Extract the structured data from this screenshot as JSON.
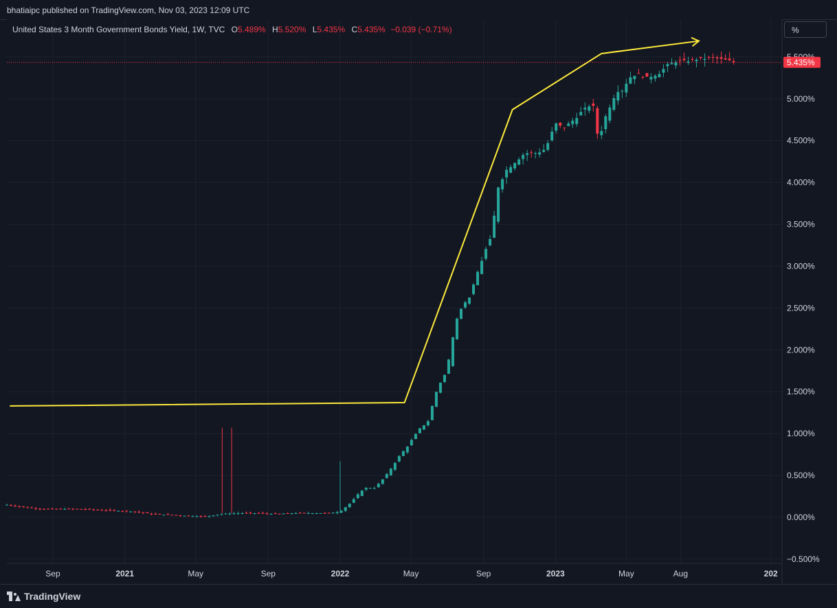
{
  "header": {
    "published": "bhatiaipc published on TradingView.com, Nov 03, 2023 12:09 UTC"
  },
  "legend": {
    "title": "United States 3 Month Government Bonds Yield, 1W, TVC",
    "o_label": "O",
    "o_value": "5.489%",
    "h_label": "H",
    "h_value": "5.520%",
    "l_label": "L",
    "l_value": "5.435%",
    "c_label": "C",
    "c_value": "5.435%",
    "change": "−0.039 (−0.71%)"
  },
  "unit_button": "%",
  "footer": {
    "brand": "TradingView"
  },
  "colors": {
    "up": "#26a69a",
    "down": "#f23645",
    "annotation": "#ffeb3b",
    "background": "#131722",
    "grid": "#1e222d"
  },
  "chart_data": {
    "type": "candlestick",
    "title": "United States 3 Month Government Bonds Yield, 1W, TVC",
    "x_range": [
      "2020-06-15",
      "2024-01-20"
    ],
    "y_range": [
      -0.55,
      5.95
    ],
    "y_unit": "%",
    "y_ticks": [
      -0.5,
      0,
      0.5,
      1,
      1.5,
      2,
      2.5,
      3,
      3.5,
      4,
      4.5,
      5,
      5.5
    ],
    "y_tick_labels": [
      "−0.500%",
      "0.000%",
      "0.500%",
      "1.000%",
      "1.500%",
      "2.000%",
      "2.500%",
      "3.000%",
      "3.500%",
      "4.000%",
      "4.500%",
      "5.000%",
      "5.500%"
    ],
    "x_ticks": [
      {
        "label": "Sep",
        "date": "2020-09-01",
        "bold": false
      },
      {
        "label": "2021",
        "date": "2021-01-01",
        "bold": true
      },
      {
        "label": "May",
        "date": "2021-05-01",
        "bold": false
      },
      {
        "label": "Sep",
        "date": "2021-09-01",
        "bold": false
      },
      {
        "label": "2022",
        "date": "2022-01-01",
        "bold": true
      },
      {
        "label": "May",
        "date": "2022-05-01",
        "bold": false
      },
      {
        "label": "Sep",
        "date": "2022-09-01",
        "bold": false
      },
      {
        "label": "2023",
        "date": "2023-01-01",
        "bold": true
      },
      {
        "label": "May",
        "date": "2023-05-01",
        "bold": false
      },
      {
        "label": "Aug",
        "date": "2023-08-01",
        "bold": false
      },
      {
        "label": "202",
        "date": "2024-01-01",
        "bold": true
      }
    ],
    "last_price": 5.435,
    "last_price_label": "5.435%",
    "series_close": [
      [
        "2020-06-15",
        0.15
      ],
      [
        "2020-07-15",
        0.12
      ],
      [
        "2020-08-15",
        0.1
      ],
      [
        "2020-09-15",
        0.1
      ],
      [
        "2020-10-15",
        0.1
      ],
      [
        "2020-11-15",
        0.09
      ],
      [
        "2020-12-15",
        0.08
      ],
      [
        "2021-01-15",
        0.07
      ],
      [
        "2021-02-15",
        0.04
      ],
      [
        "2021-03-15",
        0.03
      ],
      [
        "2021-04-15",
        0.02
      ],
      [
        "2021-05-15",
        0.01
      ],
      [
        "2021-06-15",
        0.04
      ],
      [
        "2021-07-15",
        0.05
      ],
      [
        "2021-08-15",
        0.05
      ],
      [
        "2021-09-15",
        0.04
      ],
      [
        "2021-10-15",
        0.05
      ],
      [
        "2021-11-15",
        0.05
      ],
      [
        "2021-12-15",
        0.05
      ],
      [
        "2022-01-01",
        0.07
      ],
      [
        "2022-01-20",
        0.18
      ],
      [
        "2022-02-10",
        0.35
      ],
      [
        "2022-03-01",
        0.35
      ],
      [
        "2022-03-20",
        0.5
      ],
      [
        "2022-04-10",
        0.72
      ],
      [
        "2022-04-25",
        0.85
      ],
      [
        "2022-05-15",
        1.05
      ],
      [
        "2022-05-30",
        1.15
      ],
      [
        "2022-06-15",
        1.55
      ],
      [
        "2022-07-01",
        1.75
      ],
      [
        "2022-07-15",
        2.35
      ],
      [
        "2022-07-25",
        2.5
      ],
      [
        "2022-08-10",
        2.65
      ],
      [
        "2022-08-25",
        3.0
      ],
      [
        "2022-09-05",
        3.2
      ],
      [
        "2022-09-15",
        3.35
      ],
      [
        "2022-09-25",
        3.95
      ],
      [
        "2022-10-10",
        4.15
      ],
      [
        "2022-10-25",
        4.25
      ],
      [
        "2022-11-10",
        4.35
      ],
      [
        "2022-11-30",
        4.35
      ],
      [
        "2022-12-15",
        4.4
      ],
      [
        "2023-01-01",
        4.7
      ],
      [
        "2023-01-15",
        4.65
      ],
      [
        "2023-02-01",
        4.75
      ],
      [
        "2023-02-15",
        4.85
      ],
      [
        "2023-03-05",
        4.95
      ],
      [
        "2023-03-15",
        4.5
      ],
      [
        "2023-03-25",
        4.75
      ],
      [
        "2023-04-05",
        4.95
      ],
      [
        "2023-04-15",
        5.1
      ],
      [
        "2023-04-25",
        5.1
      ],
      [
        "2023-05-05",
        5.25
      ],
      [
        "2023-05-20",
        5.3
      ],
      [
        "2023-06-05",
        5.25
      ],
      [
        "2023-06-25",
        5.3
      ],
      [
        "2023-07-10",
        5.4
      ],
      [
        "2023-07-25",
        5.45
      ],
      [
        "2023-08-10",
        5.45
      ],
      [
        "2023-08-25",
        5.47
      ],
      [
        "2023-09-10",
        5.48
      ],
      [
        "2023-09-25",
        5.49
      ],
      [
        "2023-10-10",
        5.47
      ],
      [
        "2023-10-25",
        5.45
      ],
      [
        "2023-11-01",
        5.435
      ]
    ],
    "spikes": [
      {
        "date": "2021-06-15",
        "high": 1.07
      },
      {
        "date": "2021-07-01",
        "high": 1.07
      },
      {
        "date": "2022-01-01",
        "high": 0.67
      }
    ],
    "annotation_line": [
      [
        "2020-06-20",
        1.33
      ],
      [
        "2022-04-20",
        1.37
      ],
      [
        "2022-10-20",
        4.87
      ],
      [
        "2023-03-20",
        5.54
      ],
      [
        "2023-09-01",
        5.69
      ]
    ]
  }
}
